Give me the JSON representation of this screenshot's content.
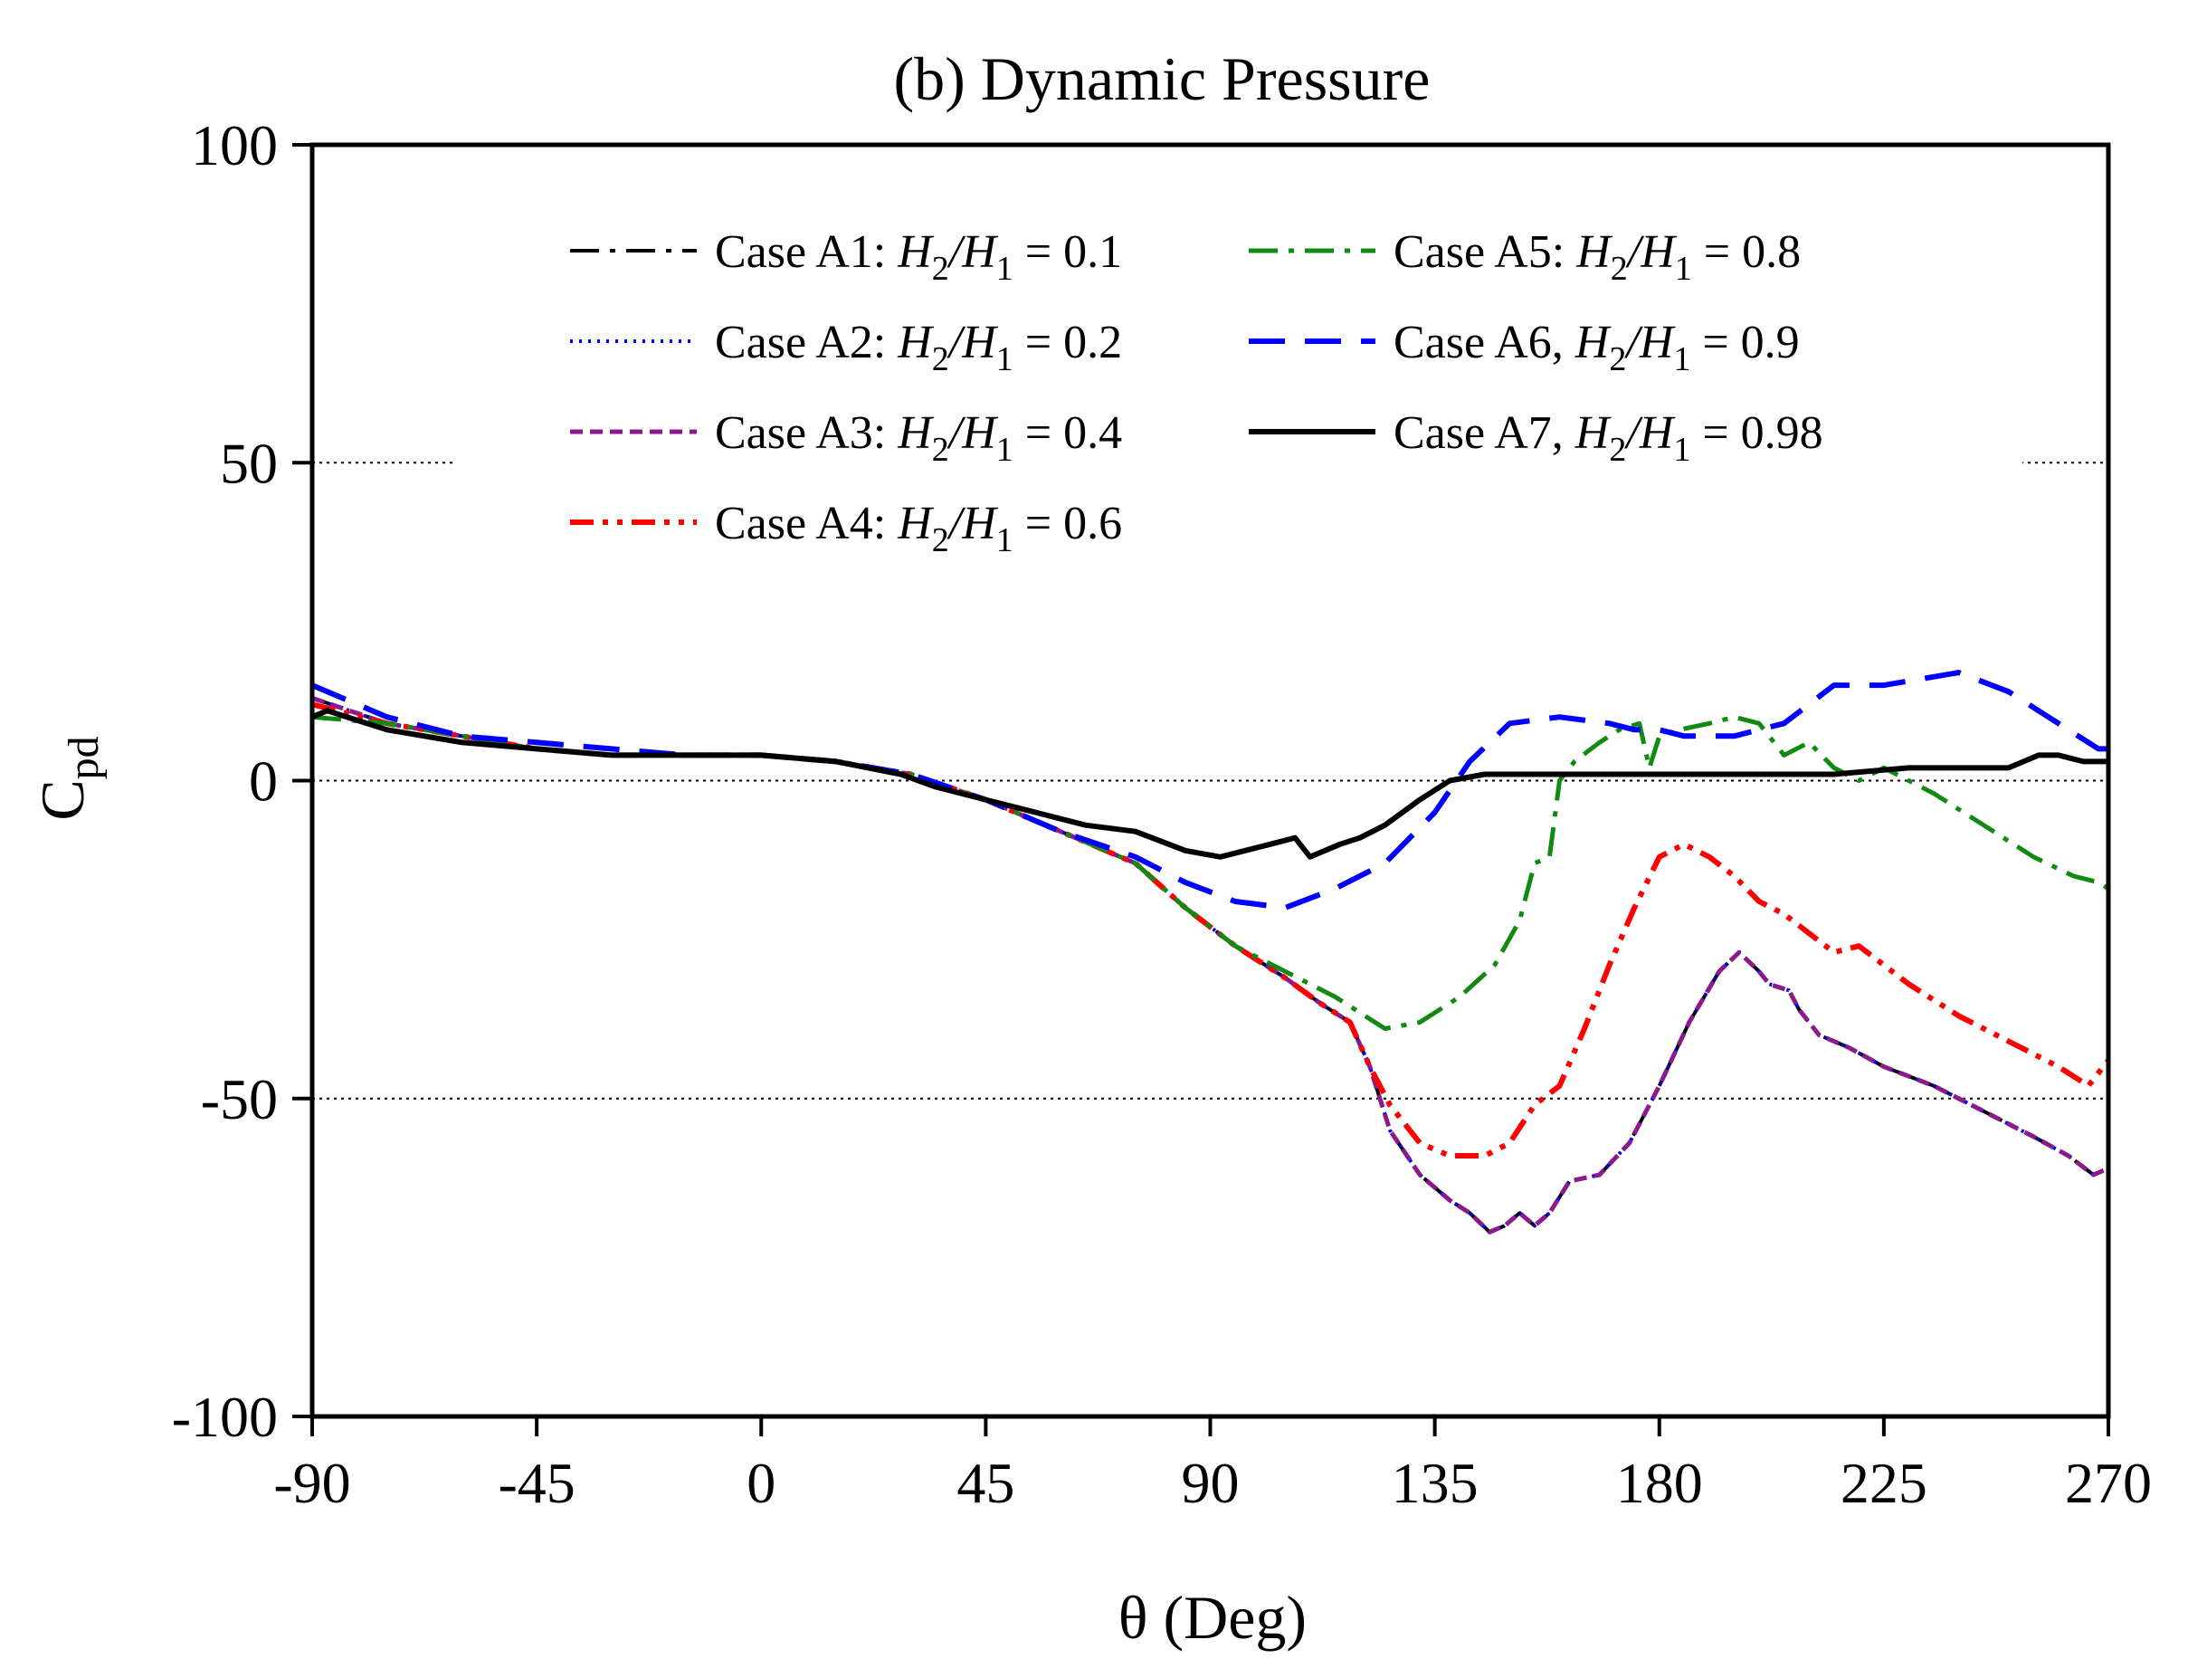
{
  "chart_data": {
    "type": "line",
    "title": "(b) Dynamic Pressure",
    "xlabel": "θ (Deg)",
    "ylabel": {
      "main": "C",
      "sub": "pd"
    },
    "xlim": [
      -90,
      270
    ],
    "ylim": [
      -100,
      100
    ],
    "xticks": [
      -90,
      -45,
      0,
      45,
      90,
      135,
      180,
      225,
      270
    ],
    "yticks": [
      -100,
      -50,
      0,
      50,
      100
    ],
    "reference_lines": [
      50,
      0,
      -50
    ],
    "legend_position": "top-center",
    "series": [
      {
        "name": "A1",
        "label": {
          "prefix": "Case A1: ",
          "ratio": "0.1"
        },
        "color": "#000000",
        "style": "dash-dot",
        "points": [
          [
            -90,
            13
          ],
          [
            -75,
            9
          ],
          [
            -60,
            7
          ],
          [
            -45,
            5
          ],
          [
            -30,
            4
          ],
          [
            -15,
            4
          ],
          [
            0,
            4
          ],
          [
            15,
            3
          ],
          [
            30,
            1
          ],
          [
            45,
            -3
          ],
          [
            60,
            -8
          ],
          [
            75,
            -13
          ],
          [
            85,
            -20
          ],
          [
            95,
            -26
          ],
          [
            105,
            -31
          ],
          [
            112,
            -35
          ],
          [
            118,
            -38
          ],
          [
            122,
            -45
          ],
          [
            126,
            -55
          ],
          [
            132,
            -62
          ],
          [
            138,
            -66
          ],
          [
            142,
            -68
          ],
          [
            146,
            -71
          ],
          [
            149,
            -70
          ],
          [
            152,
            -68
          ],
          [
            155,
            -70
          ],
          [
            158,
            -68
          ],
          [
            162,
            -63
          ],
          [
            168,
            -62
          ],
          [
            174,
            -57
          ],
          [
            180,
            -48
          ],
          [
            186,
            -38
          ],
          [
            192,
            -30
          ],
          [
            196,
            -27
          ],
          [
            200,
            -30
          ],
          [
            202,
            -32
          ],
          [
            206,
            -33
          ],
          [
            208,
            -36
          ],
          [
            212,
            -40
          ],
          [
            218,
            -42
          ],
          [
            225,
            -45
          ],
          [
            235,
            -48
          ],
          [
            245,
            -52
          ],
          [
            255,
            -56
          ],
          [
            262,
            -59
          ],
          [
            267,
            -62
          ],
          [
            270,
            -61
          ]
        ]
      },
      {
        "name": "A2",
        "label": {
          "prefix": "Case A2: ",
          "ratio": "0.2"
        },
        "color": "#0000ff",
        "style": "dotted",
        "points": [
          [
            -90,
            13
          ],
          [
            -75,
            9
          ],
          [
            -60,
            7
          ],
          [
            -45,
            5
          ],
          [
            -30,
            4
          ],
          [
            -15,
            4
          ],
          [
            0,
            4
          ],
          [
            15,
            3
          ],
          [
            30,
            1
          ],
          [
            45,
            -3
          ],
          [
            60,
            -8
          ],
          [
            75,
            -13
          ],
          [
            85,
            -20
          ],
          [
            95,
            -26
          ],
          [
            105,
            -31
          ],
          [
            112,
            -35
          ],
          [
            118,
            -38
          ],
          [
            122,
            -45
          ],
          [
            126,
            -55
          ],
          [
            132,
            -62
          ],
          [
            138,
            -66
          ],
          [
            142,
            -68
          ],
          [
            146,
            -71
          ],
          [
            149,
            -70
          ],
          [
            152,
            -68
          ],
          [
            155,
            -70
          ],
          [
            158,
            -68
          ],
          [
            162,
            -63
          ],
          [
            168,
            -62
          ],
          [
            174,
            -57
          ],
          [
            180,
            -48
          ],
          [
            186,
            -38
          ],
          [
            192,
            -30
          ],
          [
            196,
            -27
          ],
          [
            200,
            -30
          ],
          [
            202,
            -32
          ],
          [
            206,
            -33
          ],
          [
            208,
            -36
          ],
          [
            212,
            -40
          ],
          [
            218,
            -42
          ],
          [
            225,
            -45
          ],
          [
            235,
            -48
          ],
          [
            245,
            -52
          ],
          [
            255,
            -56
          ],
          [
            262,
            -59
          ],
          [
            267,
            -62
          ],
          [
            270,
            -61
          ]
        ]
      },
      {
        "name": "A3",
        "label": {
          "prefix": "Case A3: ",
          "ratio": "0.4"
        },
        "color": "#8b1a8b",
        "style": "short-dash",
        "points": [
          [
            -90,
            13
          ],
          [
            -75,
            9
          ],
          [
            -60,
            7
          ],
          [
            -45,
            5
          ],
          [
            -30,
            4
          ],
          [
            -15,
            4
          ],
          [
            0,
            4
          ],
          [
            15,
            3
          ],
          [
            30,
            1
          ],
          [
            45,
            -3
          ],
          [
            60,
            -8
          ],
          [
            75,
            -13
          ],
          [
            85,
            -20
          ],
          [
            95,
            -26
          ],
          [
            105,
            -31
          ],
          [
            112,
            -35
          ],
          [
            118,
            -38
          ],
          [
            122,
            -45
          ],
          [
            126,
            -55
          ],
          [
            132,
            -62
          ],
          [
            138,
            -66
          ],
          [
            142,
            -68
          ],
          [
            146,
            -71
          ],
          [
            149,
            -70
          ],
          [
            152,
            -68
          ],
          [
            155,
            -70
          ],
          [
            158,
            -68
          ],
          [
            162,
            -63
          ],
          [
            168,
            -62
          ],
          [
            174,
            -57
          ],
          [
            180,
            -48
          ],
          [
            186,
            -38
          ],
          [
            192,
            -30
          ],
          [
            196,
            -27
          ],
          [
            200,
            -30
          ],
          [
            202,
            -32
          ],
          [
            206,
            -33
          ],
          [
            208,
            -36
          ],
          [
            212,
            -40
          ],
          [
            218,
            -42
          ],
          [
            225,
            -45
          ],
          [
            235,
            -48
          ],
          [
            245,
            -52
          ],
          [
            255,
            -56
          ],
          [
            262,
            -59
          ],
          [
            267,
            -62
          ],
          [
            270,
            -61
          ]
        ]
      },
      {
        "name": "A4",
        "label": {
          "prefix": "Case A4: ",
          "ratio": "0.6"
        },
        "color": "#ff0000",
        "style": "dash-dot-dot",
        "points": [
          [
            -90,
            12
          ],
          [
            -75,
            9
          ],
          [
            -60,
            7
          ],
          [
            -45,
            5
          ],
          [
            -30,
            4
          ],
          [
            -15,
            4
          ],
          [
            0,
            4
          ],
          [
            15,
            3
          ],
          [
            30,
            1
          ],
          [
            45,
            -3
          ],
          [
            60,
            -8
          ],
          [
            75,
            -13
          ],
          [
            85,
            -20
          ],
          [
            95,
            -26
          ],
          [
            105,
            -31
          ],
          [
            112,
            -35
          ],
          [
            118,
            -38
          ],
          [
            122,
            -45
          ],
          [
            126,
            -51
          ],
          [
            132,
            -57
          ],
          [
            138,
            -59
          ],
          [
            145,
            -59
          ],
          [
            150,
            -57
          ],
          [
            155,
            -51
          ],
          [
            160,
            -48
          ],
          [
            165,
            -39
          ],
          [
            170,
            -29
          ],
          [
            175,
            -20
          ],
          [
            180,
            -12
          ],
          [
            185,
            -10
          ],
          [
            190,
            -12
          ],
          [
            195,
            -15
          ],
          [
            200,
            -19
          ],
          [
            205,
            -21
          ],
          [
            210,
            -24
          ],
          [
            215,
            -27
          ],
          [
            220,
            -26
          ],
          [
            230,
            -32
          ],
          [
            240,
            -37
          ],
          [
            250,
            -41
          ],
          [
            260,
            -45
          ],
          [
            266,
            -48
          ],
          [
            270,
            -44
          ]
        ]
      },
      {
        "name": "A5",
        "label": {
          "prefix": "Case A5: ",
          "ratio": "0.8"
        },
        "color": "#118a11",
        "style": "dash-dot",
        "points": [
          [
            -90,
            10
          ],
          [
            -75,
            9
          ],
          [
            -60,
            7
          ],
          [
            -45,
            5
          ],
          [
            -30,
            4
          ],
          [
            -15,
            4
          ],
          [
            0,
            4
          ],
          [
            15,
            3
          ],
          [
            30,
            1
          ],
          [
            45,
            -3
          ],
          [
            60,
            -8
          ],
          [
            75,
            -13
          ],
          [
            85,
            -20
          ],
          [
            95,
            -26
          ],
          [
            105,
            -30
          ],
          [
            115,
            -34
          ],
          [
            125,
            -39
          ],
          [
            132,
            -38
          ],
          [
            140,
            -34
          ],
          [
            147,
            -29
          ],
          [
            152,
            -22
          ],
          [
            155,
            -13
          ],
          [
            158,
            -12
          ],
          [
            160,
            0
          ],
          [
            163,
            3
          ],
          [
            168,
            6
          ],
          [
            172,
            8
          ],
          [
            176,
            9
          ],
          [
            178,
            2
          ],
          [
            180,
            7
          ],
          [
            184,
            8
          ],
          [
            190,
            9
          ],
          [
            195,
            10
          ],
          [
            200,
            9
          ],
          [
            205,
            4
          ],
          [
            210,
            6
          ],
          [
            215,
            2
          ],
          [
            220,
            0
          ],
          [
            225,
            2
          ],
          [
            235,
            -2
          ],
          [
            245,
            -7
          ],
          [
            255,
            -12
          ],
          [
            263,
            -15
          ],
          [
            268,
            -16
          ],
          [
            270,
            -17
          ]
        ]
      },
      {
        "name": "A6",
        "label": {
          "prefix": "Case A6, ",
          "ratio": "0.9"
        },
        "color": "#0000ff",
        "style": "long-dash",
        "points": [
          [
            -90,
            15
          ],
          [
            -75,
            10
          ],
          [
            -60,
            7
          ],
          [
            -45,
            6
          ],
          [
            -30,
            5
          ],
          [
            -15,
            4
          ],
          [
            0,
            4
          ],
          [
            15,
            3
          ],
          [
            30,
            1
          ],
          [
            45,
            -3
          ],
          [
            60,
            -8
          ],
          [
            75,
            -12
          ],
          [
            85,
            -16
          ],
          [
            95,
            -19
          ],
          [
            105,
            -20
          ],
          [
            115,
            -17
          ],
          [
            125,
            -13
          ],
          [
            135,
            -5
          ],
          [
            142,
            3
          ],
          [
            150,
            9
          ],
          [
            160,
            10
          ],
          [
            170,
            9
          ],
          [
            175,
            8
          ],
          [
            180,
            8
          ],
          [
            185,
            7
          ],
          [
            195,
            7
          ],
          [
            205,
            9
          ],
          [
            215,
            15
          ],
          [
            225,
            15
          ],
          [
            240,
            17
          ],
          [
            250,
            14
          ],
          [
            260,
            9
          ],
          [
            268,
            5
          ],
          [
            270,
            5
          ]
        ]
      },
      {
        "name": "A7",
        "label": {
          "prefix": "Case A7, ",
          "ratio": "0.98"
        },
        "color": "#000000",
        "style": "solid",
        "points": [
          [
            -90,
            10
          ],
          [
            -87,
            11
          ],
          [
            -75,
            8
          ],
          [
            -60,
            6
          ],
          [
            -45,
            5
          ],
          [
            -30,
            4
          ],
          [
            -15,
            4
          ],
          [
            0,
            4
          ],
          [
            15,
            3
          ],
          [
            28,
            1
          ],
          [
            35,
            -1
          ],
          [
            45,
            -3
          ],
          [
            55,
            -5
          ],
          [
            65,
            -7
          ],
          [
            75,
            -8
          ],
          [
            85,
            -11
          ],
          [
            92,
            -12
          ],
          [
            97,
            -11
          ],
          [
            102,
            -10
          ],
          [
            107,
            -9
          ],
          [
            110,
            -12
          ],
          [
            113,
            -11
          ],
          [
            116,
            -10
          ],
          [
            120,
            -9
          ],
          [
            125,
            -7
          ],
          [
            132,
            -3
          ],
          [
            138,
            0
          ],
          [
            145,
            1
          ],
          [
            150,
            1
          ],
          [
            155,
            1
          ],
          [
            160,
            1
          ],
          [
            170,
            1
          ],
          [
            185,
            1
          ],
          [
            200,
            1
          ],
          [
            215,
            1
          ],
          [
            230,
            2
          ],
          [
            240,
            2
          ],
          [
            246,
            2
          ],
          [
            250,
            2
          ],
          [
            253,
            3
          ],
          [
            256,
            4
          ],
          [
            260,
            4
          ],
          [
            265,
            3
          ],
          [
            270,
            3
          ]
        ]
      }
    ]
  }
}
